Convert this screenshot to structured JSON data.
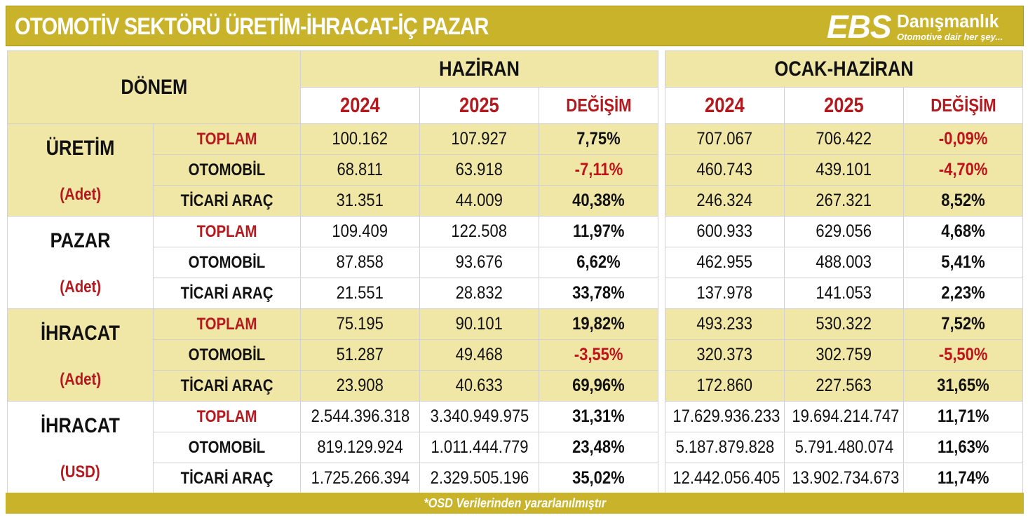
{
  "title": "OTOMOTİV SEKTÖRÜ  ÜRETİM-İHRACAT-İÇ PAZAR",
  "logo": {
    "ebs": "EBS",
    "name": "Danışmanlık",
    "tagline": "Otomotive dair her şey..."
  },
  "header": {
    "donem": "DÖNEM",
    "period1": "HAZİRAN",
    "period2": "OCAK-HAZİRAN",
    "year1": "2024",
    "year2": "2025",
    "change": "DEĞİŞİM"
  },
  "groups": [
    {
      "name": "ÜRETİM",
      "unit": "(Adet)",
      "rows": [
        {
          "label": "TOPLAM",
          "h2024": "100.162",
          "h2025": "107.927",
          "hchg": "7,75%",
          "c2024": "707.067",
          "c2025": "706.422",
          "cchg": "-0,09%"
        },
        {
          "label": "OTOMOBİL",
          "h2024": "68.811",
          "h2025": "63.918",
          "hchg": "-7,11%",
          "c2024": "460.743",
          "c2025": "439.101",
          "cchg": "-4,70%"
        },
        {
          "label": "TİCARİ ARAÇ",
          "h2024": "31.351",
          "h2025": "44.009",
          "hchg": "40,38%",
          "c2024": "246.324",
          "c2025": "267.321",
          "cchg": "8,52%"
        }
      ]
    },
    {
      "name": "PAZAR",
      "unit": "(Adet)",
      "rows": [
        {
          "label": "TOPLAM",
          "h2024": "109.409",
          "h2025": "122.508",
          "hchg": "11,97%",
          "c2024": "600.933",
          "c2025": "629.056",
          "cchg": "4,68%"
        },
        {
          "label": "OTOMOBİL",
          "h2024": "87.858",
          "h2025": "93.676",
          "hchg": "6,62%",
          "c2024": "462.955",
          "c2025": "488.003",
          "cchg": "5,41%"
        },
        {
          "label": "TİCARİ ARAÇ",
          "h2024": "21.551",
          "h2025": "28.832",
          "hchg": "33,78%",
          "c2024": "137.978",
          "c2025": "141.053",
          "cchg": "2,23%"
        }
      ]
    },
    {
      "name": "İHRACAT",
      "unit": "(Adet)",
      "rows": [
        {
          "label": "TOPLAM",
          "h2024": "75.195",
          "h2025": "90.101",
          "hchg": "19,82%",
          "c2024": "493.233",
          "c2025": "530.322",
          "cchg": "7,52%"
        },
        {
          "label": "OTOMOBİL",
          "h2024": "51.287",
          "h2025": "49.468",
          "hchg": "-3,55%",
          "c2024": "320.373",
          "c2025": "302.759",
          "cchg": "-5,50%"
        },
        {
          "label": "TİCARİ ARAÇ",
          "h2024": "23.908",
          "h2025": "40.633",
          "hchg": "69,96%",
          "c2024": "172.860",
          "c2025": "227.563",
          "cchg": "31,65%"
        }
      ]
    },
    {
      "name": "İHRACAT",
      "unit": "(USD)",
      "rows": [
        {
          "label": "TOPLAM",
          "h2024": "2.544.396.318",
          "h2025": "3.340.949.975",
          "hchg": "31,31%",
          "c2024": "17.629.936.233",
          "c2025": "19.694.214.747",
          "cchg": "11,71%"
        },
        {
          "label": "OTOMOBİL",
          "h2024": "819.129.924",
          "h2025": "1.011.444.779",
          "hchg": "23,48%",
          "c2024": "5.187.879.828",
          "c2025": "5.791.480.074",
          "cchg": "11,63%"
        },
        {
          "label": "TİCARİ ARAÇ",
          "h2024": "1.725.266.394",
          "h2025": "2.329.505.196",
          "hchg": "35,02%",
          "c2024": "12.442.056.405",
          "c2025": "13.902.734.673",
          "cchg": "11,74%"
        }
      ]
    }
  ],
  "footer": "*OSD Verilerinden yararlanılmıştır",
  "colors": {
    "gold": "#c9b32b",
    "light_yellow": "#f0e6a5",
    "red": "#b5191e",
    "negative": "#c0121a"
  }
}
